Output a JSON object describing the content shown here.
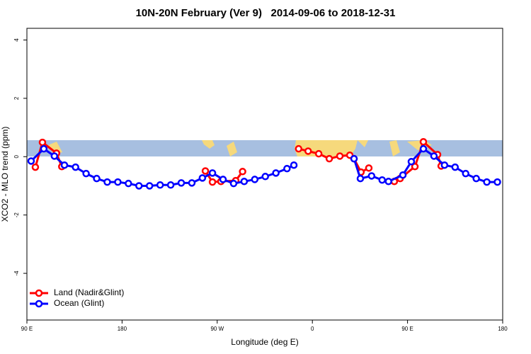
{
  "chart_data": {
    "type": "line",
    "title": "10N-20N February (Ver 9)   2014-09-06 to 2018-12-31",
    "x_label": "Longitude (deg E)",
    "y_label": "XCO2 - MLO trend (ppm)",
    "xlim": [
      90,
      540
    ],
    "xticks": [
      {
        "value": 90,
        "label": "90 E"
      },
      180,
      {
        "value": 270,
        "label": "90 W"
      },
      {
        "value": 360,
        "label": "0"
      },
      {
        "value": 450,
        "label": "90 E"
      },
      {
        "value": 540,
        "label": "180"
      }
    ],
    "ylim": [
      -5.6,
      4.4
    ],
    "yticks": [
      -4,
      -2,
      0,
      2,
      4
    ],
    "grid": false,
    "legend": "bottom left",
    "series": [
      {
        "name": "Land (Nadir&Glint)",
        "color": "#ff0000",
        "x": [
          98,
          104.7,
          118,
          123,
          null,
          258.8,
          265.5,
          273.5,
          287.5,
          294,
          null,
          347,
          356,
          366,
          376,
          386,
          395.4,
          399.4,
          406,
          413.4,
          null,
          437.5,
          443,
          457,
          465,
          478.4,
          481.8
        ],
        "values": [
          -0.36,
          0.49,
          0.12,
          -0.34,
          null,
          -0.49,
          -0.87,
          -0.85,
          -0.82,
          -0.51,
          null,
          0.27,
          0.19,
          0.1,
          -0.07,
          0.02,
          0.05,
          -0.07,
          -0.53,
          -0.39,
          null,
          -0.85,
          -0.75,
          -0.34,
          0.51,
          0.07,
          -0.32
        ]
      },
      {
        "name": "Ocean (Glint)",
        "color": "#0000ff",
        "x": [
          94,
          106,
          116,
          125.5,
          136,
          146,
          156,
          166,
          176,
          186,
          196,
          206,
          216,
          226,
          236,
          246,
          256,
          265.5,
          275.5,
          285.5,
          295.5,
          305.5,
          315.5,
          325.5,
          336,
          342.5,
          null,
          399.4,
          405.4,
          416,
          426,
          432,
          445.6,
          453.6,
          465,
          475,
          485,
          495,
          505,
          515,
          525,
          535
        ],
        "values": [
          -0.15,
          0.27,
          0.02,
          -0.29,
          -0.36,
          -0.58,
          -0.75,
          -0.87,
          -0.87,
          -0.92,
          -1.0,
          -1.0,
          -0.97,
          -0.97,
          -0.9,
          -0.9,
          -0.73,
          -0.56,
          -0.78,
          -0.92,
          -0.85,
          -0.78,
          -0.68,
          -0.56,
          -0.41,
          -0.29,
          null,
          -0.07,
          -0.75,
          -0.66,
          -0.8,
          -0.85,
          -0.63,
          -0.17,
          0.27,
          0.02,
          -0.29,
          -0.36,
          -0.58,
          -0.75,
          -0.87,
          -0.87
        ]
      }
    ]
  }
}
